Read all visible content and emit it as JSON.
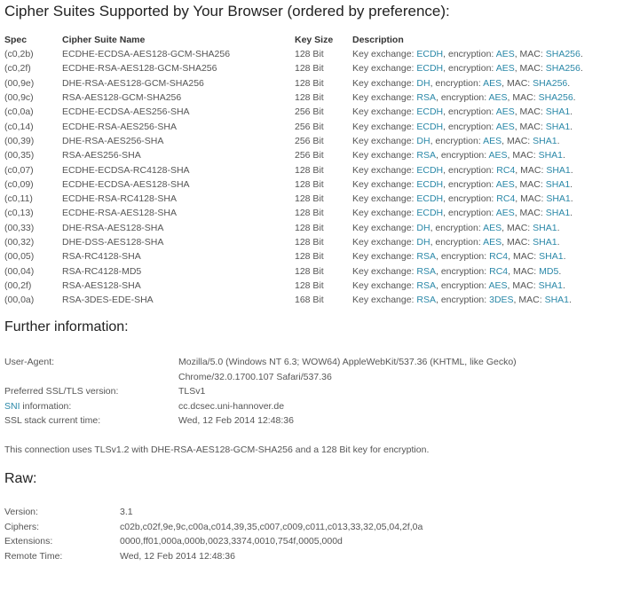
{
  "title": "Cipher Suites Supported by Your Browser (ordered by preference):",
  "table": {
    "headers": [
      "Spec",
      "Cipher Suite Name",
      "Key Size",
      "Description"
    ],
    "desc_labels": {
      "kx": "Key exchange: ",
      "enc": ", encryption: ",
      "mac": ", MAC: ",
      "end": "."
    },
    "rows": [
      {
        "spec": "(c0,2b)",
        "name": "ECDHE-ECDSA-AES128-GCM-SHA256",
        "size": "128 Bit",
        "kx": "ECDH",
        "enc": "AES",
        "mac": "SHA256"
      },
      {
        "spec": "(c0,2f)",
        "name": "ECDHE-RSA-AES128-GCM-SHA256",
        "size": "128 Bit",
        "kx": "ECDH",
        "enc": "AES",
        "mac": "SHA256"
      },
      {
        "spec": "(00,9e)",
        "name": "DHE-RSA-AES128-GCM-SHA256",
        "size": "128 Bit",
        "kx": "DH",
        "enc": "AES",
        "mac": "SHA256"
      },
      {
        "spec": "(00,9c)",
        "name": "RSA-AES128-GCM-SHA256",
        "size": "128 Bit",
        "kx": "RSA",
        "enc": "AES",
        "mac": "SHA256"
      },
      {
        "spec": "(c0,0a)",
        "name": "ECDHE-ECDSA-AES256-SHA",
        "size": "256 Bit",
        "kx": "ECDH",
        "enc": "AES",
        "mac": "SHA1"
      },
      {
        "spec": "(c0,14)",
        "name": "ECDHE-RSA-AES256-SHA",
        "size": "256 Bit",
        "kx": "ECDH",
        "enc": "AES",
        "mac": "SHA1"
      },
      {
        "spec": "(00,39)",
        "name": "DHE-RSA-AES256-SHA",
        "size": "256 Bit",
        "kx": "DH",
        "enc": "AES",
        "mac": "SHA1"
      },
      {
        "spec": "(00,35)",
        "name": "RSA-AES256-SHA",
        "size": "256 Bit",
        "kx": "RSA",
        "enc": "AES",
        "mac": "SHA1"
      },
      {
        "spec": "(c0,07)",
        "name": "ECDHE-ECDSA-RC4128-SHA",
        "size": "128 Bit",
        "kx": "ECDH",
        "enc": "RC4",
        "mac": "SHA1"
      },
      {
        "spec": "(c0,09)",
        "name": "ECDHE-ECDSA-AES128-SHA",
        "size": "128 Bit",
        "kx": "ECDH",
        "enc": "AES",
        "mac": "SHA1"
      },
      {
        "spec": "(c0,11)",
        "name": "ECDHE-RSA-RC4128-SHA",
        "size": "128 Bit",
        "kx": "ECDH",
        "enc": "RC4",
        "mac": "SHA1"
      },
      {
        "spec": "(c0,13)",
        "name": "ECDHE-RSA-AES128-SHA",
        "size": "128 Bit",
        "kx": "ECDH",
        "enc": "AES",
        "mac": "SHA1"
      },
      {
        "spec": "(00,33)",
        "name": "DHE-RSA-AES128-SHA",
        "size": "128 Bit",
        "kx": "DH",
        "enc": "AES",
        "mac": "SHA1"
      },
      {
        "spec": "(00,32)",
        "name": "DHE-DSS-AES128-SHA",
        "size": "128 Bit",
        "kx": "DH",
        "enc": "AES",
        "mac": "SHA1"
      },
      {
        "spec": "(00,05)",
        "name": "RSA-RC4128-SHA",
        "size": "128 Bit",
        "kx": "RSA",
        "enc": "RC4",
        "mac": "SHA1"
      },
      {
        "spec": "(00,04)",
        "name": "RSA-RC4128-MD5",
        "size": "128 Bit",
        "kx": "RSA",
        "enc": "RC4",
        "mac": "MD5"
      },
      {
        "spec": "(00,2f)",
        "name": "RSA-AES128-SHA",
        "size": "128 Bit",
        "kx": "RSA",
        "enc": "AES",
        "mac": "SHA1"
      },
      {
        "spec": "(00,0a)",
        "name": "RSA-3DES-EDE-SHA",
        "size": "168 Bit",
        "kx": "RSA",
        "enc": "3DES",
        "mac": "SHA1"
      }
    ]
  },
  "further": {
    "title": "Further information:",
    "user_agent_label": "User-Agent:",
    "user_agent_line1": "Mozilla/5.0 (Windows NT 6.3; WOW64) AppleWebKit/537.36 (KHTML, like Gecko)",
    "user_agent_line2": "Chrome/32.0.1700.107 Safari/537.36",
    "pref_label": "Preferred SSL/TLS version:",
    "pref_value": "TLSv1",
    "sni_link": "SNI",
    "sni_label_rest": " information:",
    "sni_value": "cc.dcsec.uni-hannover.de",
    "time_label": "SSL stack current time:",
    "time_value": "Wed, 12 Feb 2014 12:48:36",
    "connection_note": "This connection uses TLSv1.2 with DHE-RSA-AES128-GCM-SHA256 and a 128 Bit key for encryption."
  },
  "raw": {
    "title": "Raw:",
    "items": [
      {
        "label": "Version:",
        "value": "3.1"
      },
      {
        "label": "Ciphers:",
        "value": "c02b,c02f,9e,9c,c00a,c014,39,35,c007,c009,c011,c013,33,32,05,04,2f,0a"
      },
      {
        "label": "Extensions:",
        "value": "0000,ff01,000a,000b,0023,3374,0010,754f,0005,000d"
      },
      {
        "label": "Remote Time:",
        "value": "Wed, 12 Feb 2014 12:48:36"
      }
    ]
  },
  "colors": {
    "link": "#2a88a8",
    "text": "#555555"
  }
}
